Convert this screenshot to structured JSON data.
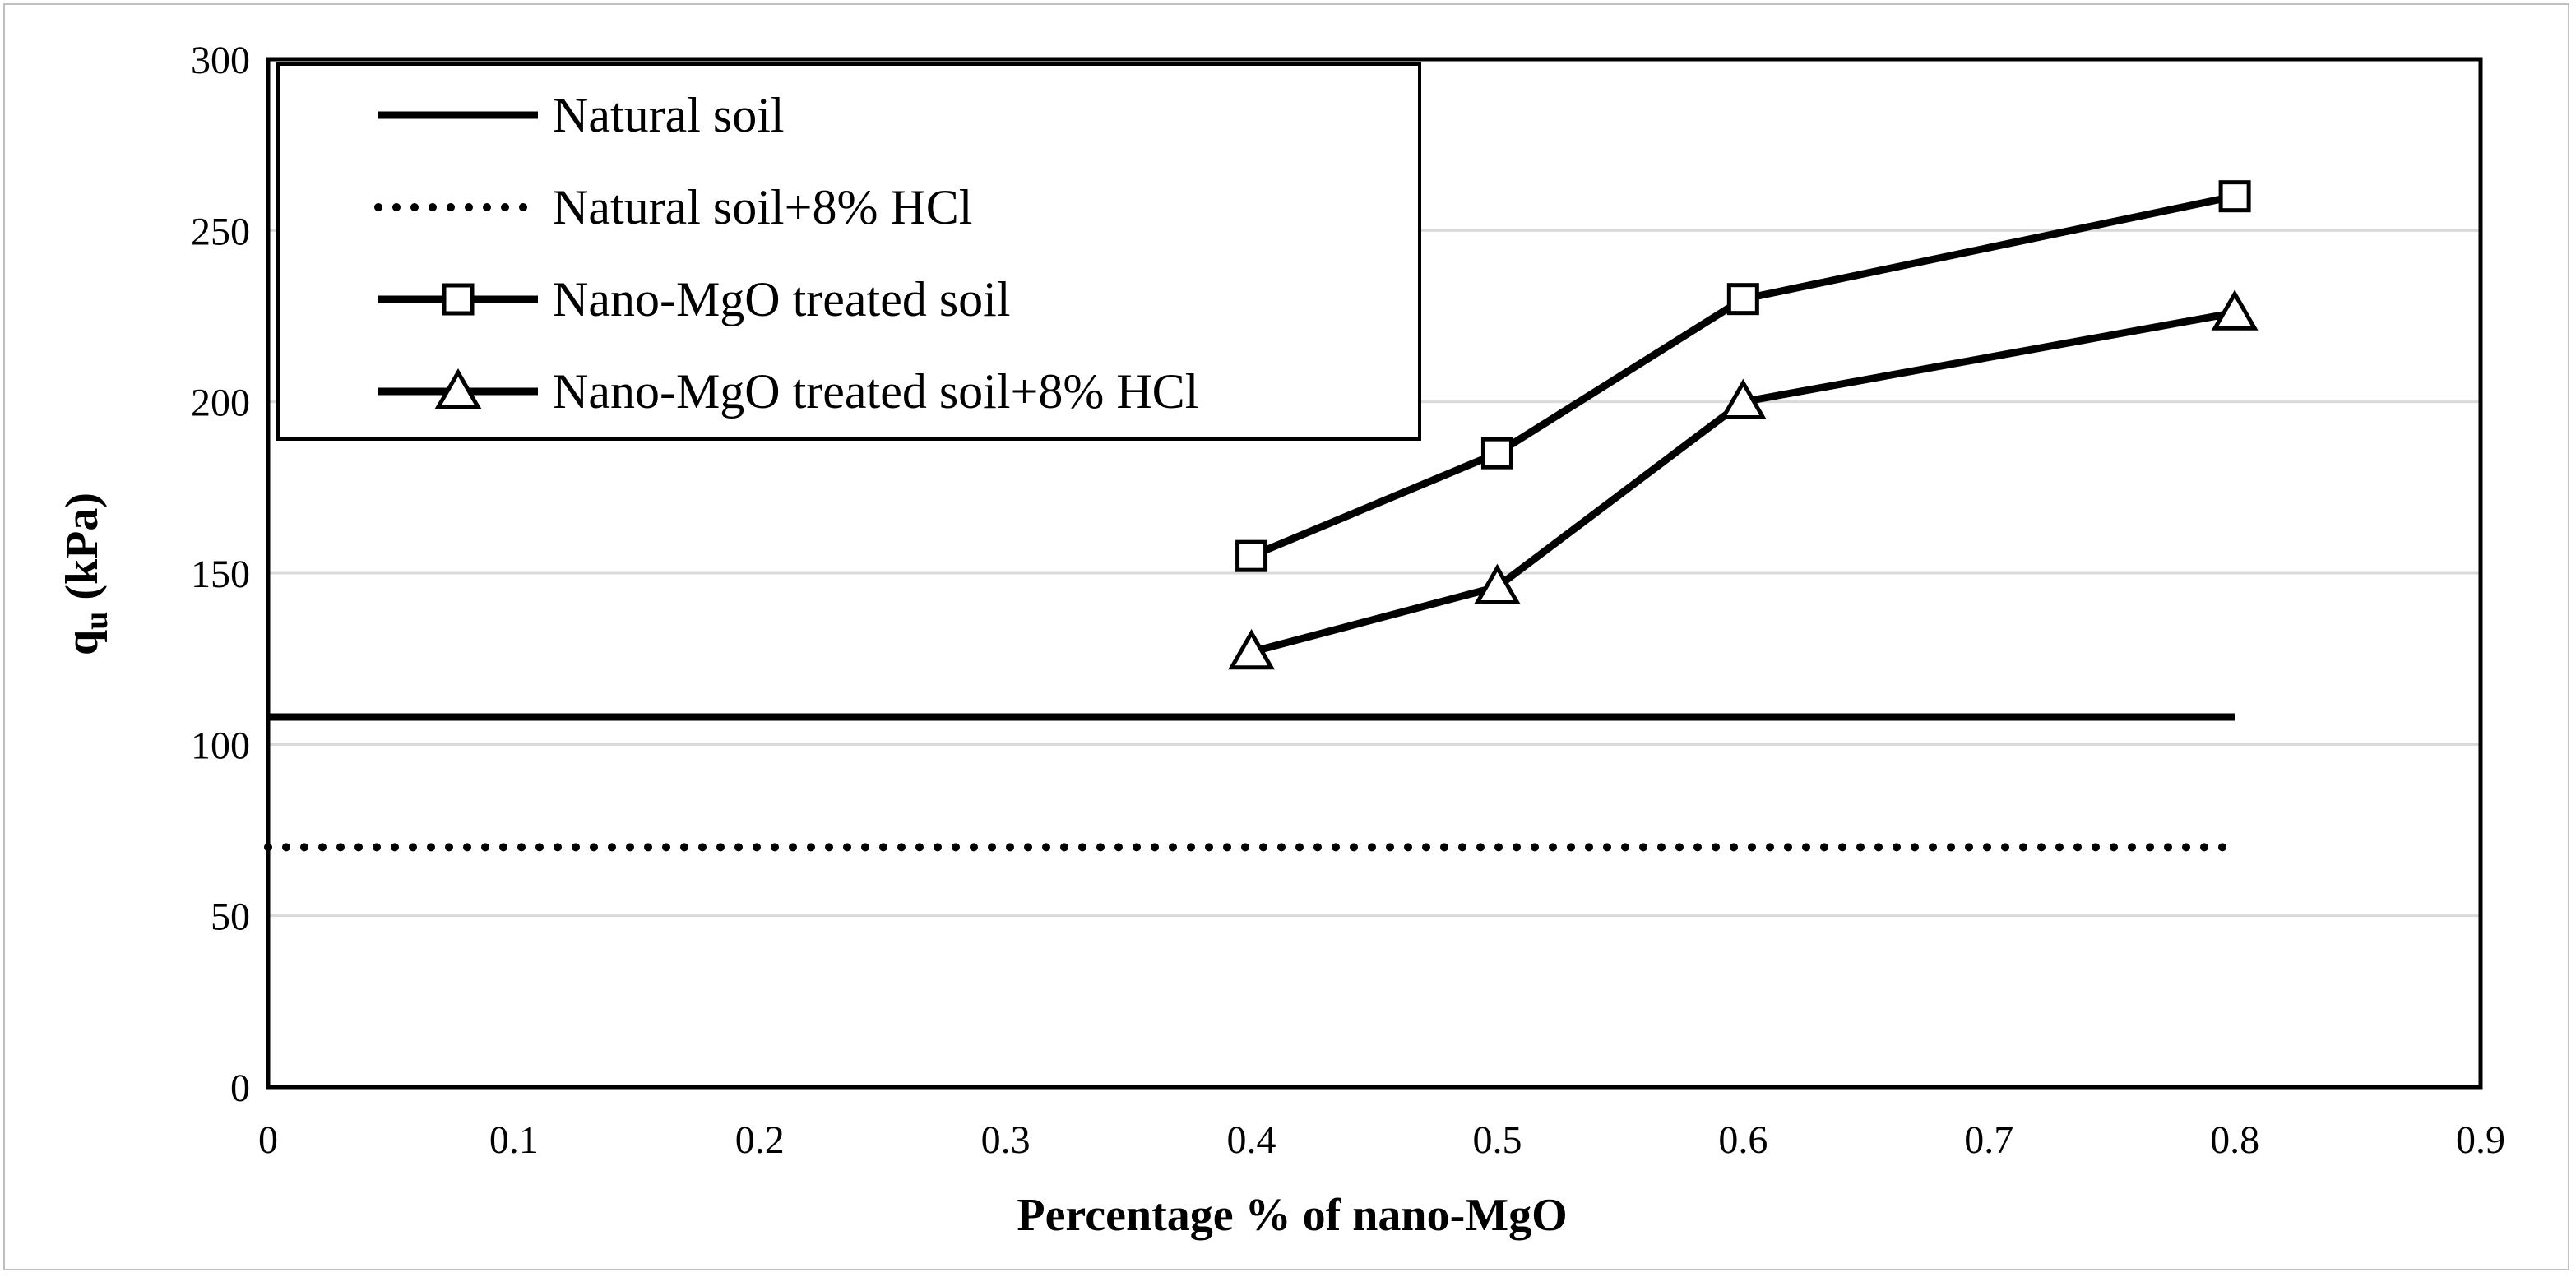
{
  "chart_data": {
    "type": "line",
    "title": "",
    "xlabel": "Percentage % of nano-MgO",
    "ylabel_main": "q",
    "ylabel_sub": "u",
    "ylabel_unit": " (kPa)",
    "xlim": [
      0,
      0.9
    ],
    "ylim": [
      0,
      300
    ],
    "x_ticks": [
      0,
      0.1,
      0.2,
      0.3,
      0.4,
      0.5,
      0.6,
      0.7,
      0.8,
      0.9
    ],
    "x_tick_labels": [
      "0",
      "0.1",
      "0.2",
      "0.3",
      "0.4",
      "0.5",
      "0.6",
      "0.7",
      "0.8",
      "0.9"
    ],
    "y_ticks": [
      0,
      50,
      100,
      150,
      200,
      250,
      300
    ],
    "y_tick_labels": [
      "0",
      "50",
      "100",
      "150",
      "200",
      "250",
      "300"
    ],
    "grid": "horizontal",
    "legend_position": "top-left",
    "series": [
      {
        "name": "Natural soil",
        "style": "solid",
        "marker": "none",
        "x": [
          0,
          0.8
        ],
        "y": [
          108,
          108
        ]
      },
      {
        "name": "Natural soil+8% HCl",
        "style": "dotted",
        "marker": "none",
        "x": [
          0,
          0.8
        ],
        "y": [
          70,
          70
        ]
      },
      {
        "name": "Nano-MgO treated soil",
        "style": "solid",
        "marker": "square",
        "x": [
          0.4,
          0.5,
          0.6,
          0.8
        ],
        "y": [
          155,
          185,
          230,
          260
        ]
      },
      {
        "name": "Nano-MgO treated soil+8% HCl",
        "style": "solid",
        "marker": "triangle",
        "x": [
          0.4,
          0.5,
          0.6,
          0.8
        ],
        "y": [
          127,
          146,
          200,
          226
        ]
      }
    ]
  },
  "colors": {
    "line": "#000000",
    "grid": "#d9d9d9",
    "frame": "#bfbfbf"
  }
}
